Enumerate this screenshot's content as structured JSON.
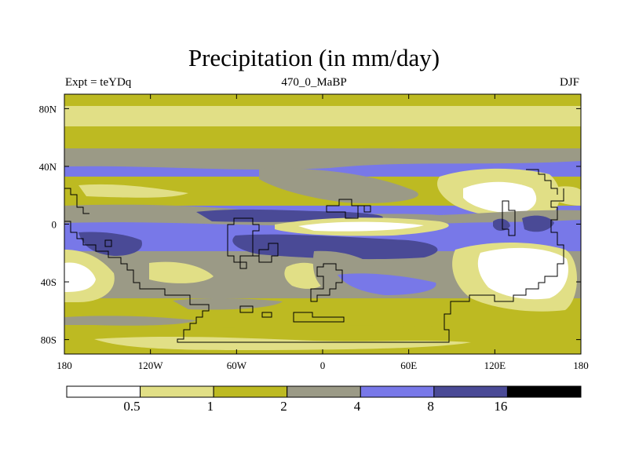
{
  "chart_data": {
    "type": "heatmap",
    "title": "Precipitation (in mm/day)",
    "left_label": "Expt = teYDq",
    "center_label": "470_0_MaBP",
    "right_label": "DJF",
    "x_range": [
      -180,
      180
    ],
    "y_range": [
      -90,
      90
    ],
    "x_ticks": [
      {
        "value": -180,
        "label": "180"
      },
      {
        "value": -120,
        "label": "120W"
      },
      {
        "value": -60,
        "label": "60W"
      },
      {
        "value": 0,
        "label": "0"
      },
      {
        "value": 60,
        "label": "60E"
      },
      {
        "value": 120,
        "label": "120E"
      },
      {
        "value": 180,
        "label": "180"
      }
    ],
    "y_ticks": [
      {
        "value": 80,
        "label": "80N"
      },
      {
        "value": 40,
        "label": "40N"
      },
      {
        "value": 0,
        "label": "0"
      },
      {
        "value": -40,
        "label": "40S"
      },
      {
        "value": -80,
        "label": "80S"
      }
    ],
    "contour_levels": [
      "0.5",
      "1",
      "2",
      "4",
      "8",
      "16"
    ],
    "colors": [
      "#ffffff",
      "#e1df86",
      "#bdba22",
      "#9b9a86",
      "#7878e8",
      "#4a4a96",
      "#000000"
    ]
  }
}
